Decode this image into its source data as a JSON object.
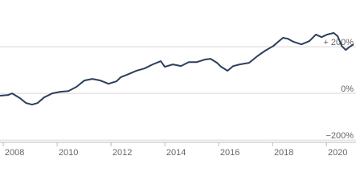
{
  "chart_data": {
    "type": "line",
    "x": [
      2007.46,
      2007.76,
      2007.91,
      2008.21,
      2008.42,
      2008.65,
      2008.86,
      2009.1,
      2009.4,
      2009.7,
      2010.0,
      2010.3,
      2010.59,
      2010.89,
      2011.19,
      2011.49,
      2011.79,
      2011.94,
      2012.24,
      2012.53,
      2012.83,
      2013.13,
      2013.43,
      2013.58,
      2013.88,
      2014.18,
      2014.47,
      2014.77,
      2015.07,
      2015.28,
      2015.52,
      2015.67,
      2015.91,
      2016.12,
      2016.36,
      2016.71,
      2017.01,
      2017.31,
      2017.61,
      2017.82,
      2017.97,
      2018.15,
      2018.36,
      2018.65,
      2018.95,
      2019.19,
      2019.4,
      2019.61,
      2019.85,
      2020.0,
      2020.15,
      2020.3,
      2020.45,
      2020.59
    ],
    "series": [
      {
        "color": "#2c3e5c",
        "values": [
          -10,
          -7,
          0,
          -21,
          -41,
          -48,
          -41,
          -17,
          0,
          7,
          10,
          28,
          55,
          62,
          55,
          41,
          52,
          69,
          83,
          97,
          107,
          124,
          138,
          114,
          124,
          117,
          134,
          134,
          145,
          148,
          131,
          114,
          97,
          117,
          124,
          131,
          159,
          183,
          203,
          224,
          238,
          234,
          221,
          210,
          224,
          252,
          241,
          252,
          259,
          245,
          203,
          186,
          200,
          210
        ]
      }
    ],
    "xlim": [
      2007.46,
      2020.68
    ],
    "xticks": [
      2008,
      2010,
      2012,
      2014,
      2016,
      2018,
      2020
    ],
    "ylim": [
      -220,
      400
    ],
    "yticks": [
      {
        "value": -200,
        "label": "−200%"
      },
      {
        "value": 0,
        "label": "0%"
      },
      {
        "value": 200,
        "label": "+ 200%"
      }
    ],
    "grid": true
  }
}
